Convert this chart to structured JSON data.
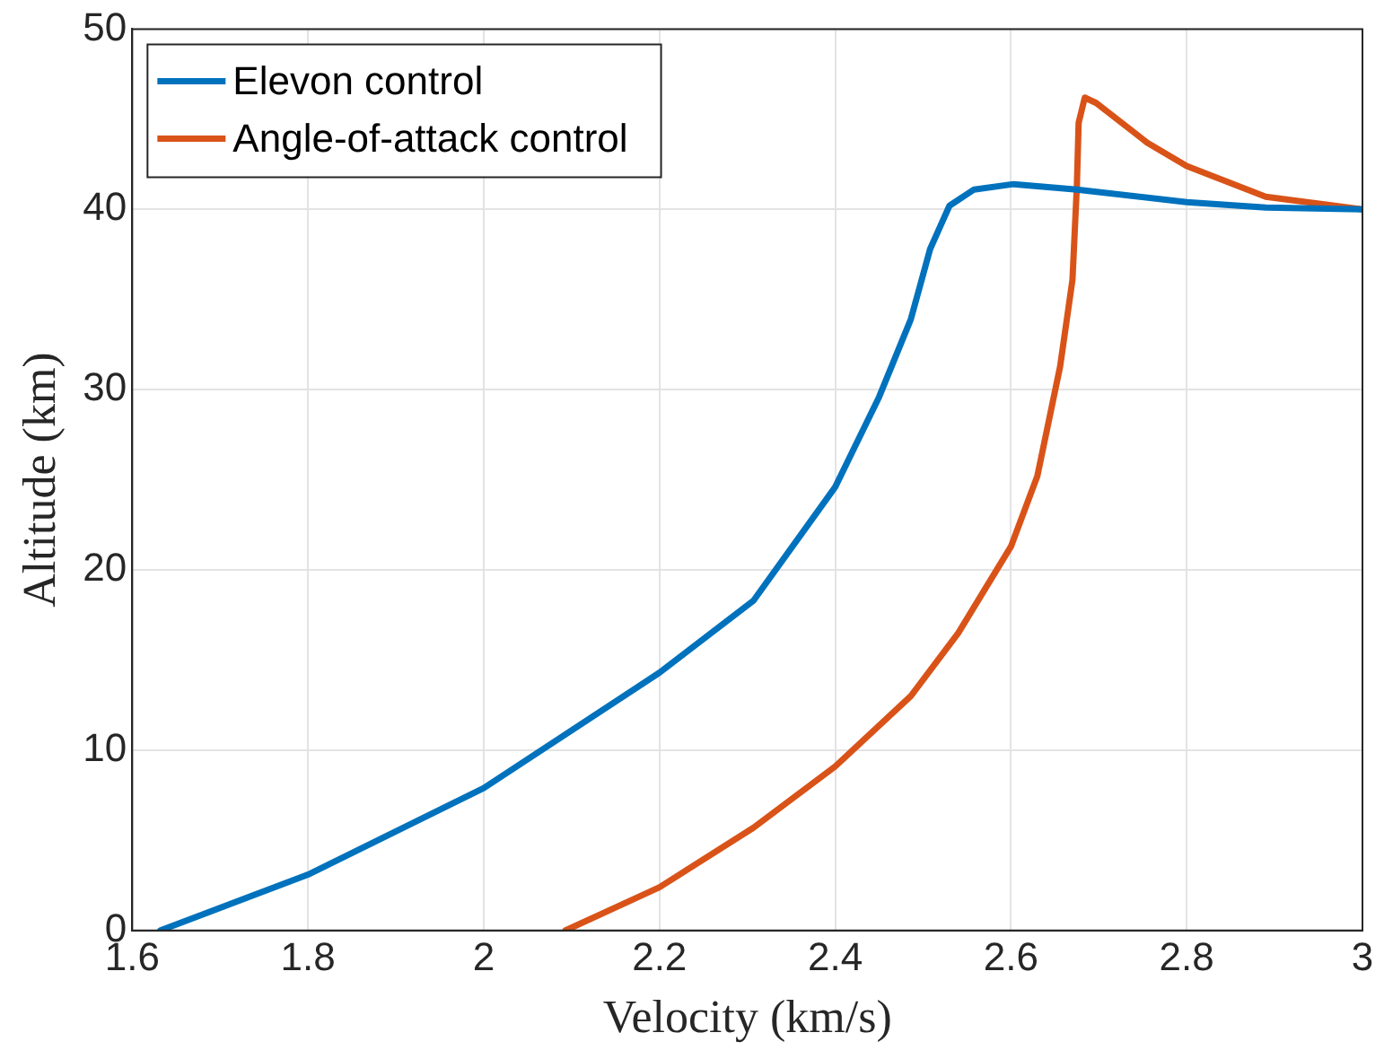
{
  "chart_data": {
    "type": "line",
    "xlabel": "Velocity (km/s)",
    "ylabel": "Altitude (km)",
    "xlim": [
      1.6,
      3
    ],
    "xticks": [
      1.6,
      1.8,
      2,
      2.2,
      2.4,
      2.6,
      2.8,
      3
    ],
    "ylim": [
      0,
      50
    ],
    "yticks": [
      0,
      10,
      20,
      30,
      40,
      50
    ],
    "grid": true,
    "legend": "top left",
    "marker": "none",
    "line_style": "solid",
    "series": [
      {
        "name": "Elevon control",
        "color": "#0072bd",
        "x": [
          1.632,
          1.8,
          2.0,
          2.2,
          2.307,
          2.4,
          2.45,
          2.486,
          2.508,
          2.53,
          2.558,
          2.603,
          2.675,
          2.8,
          2.89,
          3.0
        ],
        "values": [
          0,
          3.1,
          7.9,
          14.3,
          18.3,
          24.6,
          29.6,
          33.9,
          37.8,
          40.2,
          41.1,
          41.4,
          41.1,
          40.4,
          40.1,
          40
        ]
      },
      {
        "name": "Angle-of-attack control",
        "color": "#d95319",
        "x": [
          2.093,
          2.2,
          2.307,
          2.4,
          2.486,
          2.54,
          2.6,
          2.63,
          2.656,
          2.67,
          2.675,
          2.677,
          2.684,
          2.697,
          2.755,
          2.8,
          2.89,
          3.0
        ],
        "values": [
          0,
          2.4,
          5.7,
          9.1,
          13,
          16.5,
          21.3,
          25.2,
          31.3,
          36.1,
          41.3,
          44.8,
          46.2,
          45.9,
          43.7,
          42.4,
          40.7,
          40
        ]
      }
    ]
  }
}
